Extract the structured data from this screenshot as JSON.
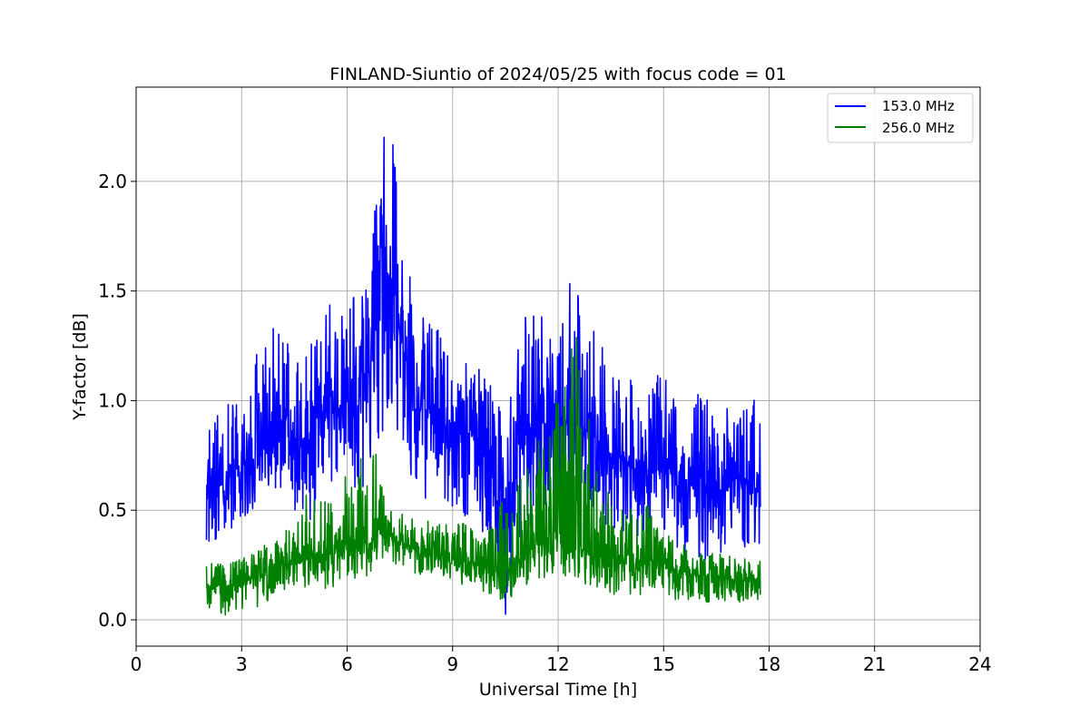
{
  "chart_data": {
    "type": "line",
    "title": "FINLAND-Siuntio of 2024/05/25 with focus code = 01",
    "xlabel": "Universal Time [h]",
    "ylabel": "Y-factor [dB]",
    "xlim": [
      0,
      24
    ],
    "ylim": [
      -0.12,
      2.43
    ],
    "xticks": [
      0,
      3,
      6,
      9,
      12,
      15,
      18,
      21,
      24
    ],
    "xtick_labels": [
      "0",
      "3",
      "6",
      "9",
      "12",
      "15",
      "18",
      "21",
      "24"
    ],
    "yticks": [
      0.0,
      0.5,
      1.0,
      1.5,
      2.0
    ],
    "ytick_labels": [
      "0.0",
      "0.5",
      "1.0",
      "1.5",
      "2.0"
    ],
    "grid": true,
    "legend_position": "top-right",
    "series": [
      {
        "name": "153.0 MHz",
        "color": "#0000ff",
        "x": [
          2.0,
          2.5,
          3.0,
          3.5,
          4.0,
          4.5,
          5.0,
          5.5,
          6.0,
          6.5,
          7.0,
          7.25,
          7.5,
          8.0,
          8.5,
          9.0,
          9.5,
          10.0,
          10.5,
          11.0,
          11.5,
          12.0,
          12.5,
          13.0,
          13.5,
          14.0,
          14.5,
          15.0,
          15.5,
          16.0,
          16.5,
          17.0,
          17.5,
          17.75
        ],
        "y": [
          0.65,
          0.62,
          0.72,
          0.78,
          0.85,
          0.8,
          0.8,
          0.95,
          1.0,
          1.05,
          1.45,
          1.55,
          1.3,
          0.95,
          0.95,
          0.85,
          0.85,
          0.75,
          0.35,
          0.85,
          0.9,
          0.95,
          0.85,
          0.85,
          0.75,
          0.72,
          0.65,
          0.7,
          0.62,
          0.6,
          0.62,
          0.65,
          0.6,
          0.6
        ],
        "upper": [
          0.92,
          0.98,
          1.05,
          1.25,
          1.35,
          1.25,
          1.3,
          1.45,
          1.45,
          1.55,
          2.2,
          2.31,
          1.8,
          1.45,
          1.45,
          1.15,
          1.2,
          1.1,
          0.9,
          1.4,
          1.45,
          1.45,
          1.65,
          1.4,
          1.2,
          1.1,
          1.05,
          1.15,
          0.95,
          1.05,
          1.0,
          0.95,
          1.02,
          1.03
        ],
        "lower": [
          0.35,
          0.38,
          0.45,
          0.5,
          0.55,
          0.5,
          0.45,
          0.55,
          0.6,
          0.55,
          0.85,
          1.0,
          0.8,
          0.55,
          0.55,
          0.5,
          0.45,
          0.35,
          0.0,
          0.4,
          0.45,
          0.5,
          0.45,
          0.45,
          0.4,
          0.4,
          0.35,
          0.4,
          0.3,
          0.25,
          0.3,
          0.3,
          0.33,
          0.33
        ]
      },
      {
        "name": "256.0 MHz",
        "color": "#008000",
        "x": [
          2.0,
          2.5,
          3.0,
          3.5,
          4.0,
          4.5,
          5.0,
          5.5,
          6.0,
          6.5,
          7.0,
          7.25,
          7.5,
          8.0,
          8.5,
          9.0,
          9.5,
          10.0,
          10.5,
          11.0,
          11.5,
          12.0,
          12.5,
          13.0,
          13.5,
          14.0,
          14.5,
          15.0,
          15.5,
          16.0,
          16.5,
          17.0,
          17.5,
          17.75
        ],
        "y": [
          0.15,
          0.15,
          0.17,
          0.2,
          0.25,
          0.25,
          0.28,
          0.3,
          0.32,
          0.33,
          0.4,
          0.4,
          0.35,
          0.32,
          0.3,
          0.28,
          0.26,
          0.25,
          0.22,
          0.3,
          0.35,
          0.38,
          0.35,
          0.3,
          0.28,
          0.26,
          0.25,
          0.24,
          0.22,
          0.2,
          0.2,
          0.18,
          0.18,
          0.18
        ],
        "upper": [
          0.28,
          0.25,
          0.28,
          0.33,
          0.4,
          0.42,
          0.65,
          0.55,
          0.68,
          0.95,
          0.7,
          0.5,
          0.5,
          0.45,
          0.45,
          0.45,
          0.45,
          0.4,
          0.6,
          0.75,
          0.9,
          1.0,
          1.35,
          0.8,
          0.55,
          0.5,
          0.55,
          0.4,
          0.35,
          0.32,
          0.3,
          0.3,
          0.28,
          0.27
        ],
        "lower": [
          0.03,
          0.02,
          0.04,
          0.06,
          0.1,
          0.1,
          0.12,
          0.14,
          0.18,
          0.18,
          0.28,
          0.28,
          0.22,
          0.2,
          0.18,
          0.17,
          0.15,
          0.12,
          0.08,
          0.15,
          0.18,
          0.2,
          0.18,
          0.15,
          0.12,
          0.1,
          0.1,
          0.1,
          0.08,
          0.08,
          0.08,
          0.08,
          0.08,
          0.08
        ]
      }
    ]
  }
}
